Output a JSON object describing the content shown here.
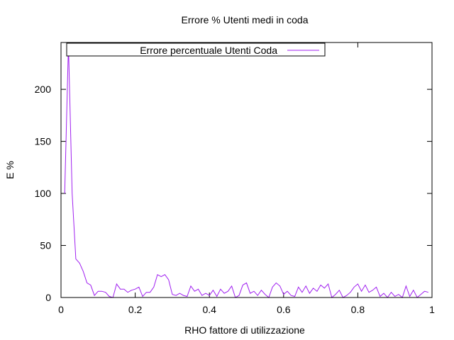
{
  "chart_data": {
    "type": "line",
    "title": "Errore % Utenti medi in coda",
    "xlabel": "RHO fattore di utilizzazione",
    "ylabel": "E %",
    "xlim": [
      0,
      1
    ],
    "ylim": [
      0,
      245
    ],
    "xticks": [
      0,
      0.2,
      0.4,
      0.6,
      0.8,
      1
    ],
    "xtick_labels": [
      "0",
      "0.2",
      "0.4",
      "0.6",
      "0.8",
      "1"
    ],
    "yticks": [
      0,
      50,
      100,
      150,
      200
    ],
    "ytick_labels": [
      "0",
      "50",
      "100",
      "150",
      "200"
    ],
    "grid": false,
    "legend_position": "top-left",
    "series": [
      {
        "name": "Errore percentuale Utenti Coda",
        "color": "#a020f0",
        "x": [
          0.01,
          0.02,
          0.03,
          0.04,
          0.05,
          0.06,
          0.07,
          0.08,
          0.09,
          0.1,
          0.11,
          0.12,
          0.13,
          0.14,
          0.15,
          0.16,
          0.17,
          0.18,
          0.19,
          0.2,
          0.21,
          0.22,
          0.23,
          0.24,
          0.25,
          0.26,
          0.27,
          0.28,
          0.29,
          0.3,
          0.31,
          0.32,
          0.33,
          0.34,
          0.35,
          0.36,
          0.37,
          0.38,
          0.39,
          0.4,
          0.41,
          0.42,
          0.43,
          0.44,
          0.45,
          0.46,
          0.47,
          0.48,
          0.49,
          0.5,
          0.51,
          0.52,
          0.53,
          0.54,
          0.55,
          0.56,
          0.57,
          0.58,
          0.59,
          0.6,
          0.61,
          0.62,
          0.63,
          0.64,
          0.65,
          0.66,
          0.67,
          0.68,
          0.69,
          0.7,
          0.71,
          0.72,
          0.73,
          0.74,
          0.75,
          0.76,
          0.77,
          0.78,
          0.79,
          0.8,
          0.81,
          0.82,
          0.83,
          0.84,
          0.85,
          0.86,
          0.87,
          0.88,
          0.89,
          0.9,
          0.91,
          0.92,
          0.93,
          0.94,
          0.95,
          0.96,
          0.97,
          0.98,
          0.99
        ],
        "y": [
          100,
          243,
          100,
          37,
          33,
          25,
          14,
          12,
          2,
          6,
          6,
          5,
          1,
          0,
          13,
          8,
          8,
          5,
          7,
          8,
          10,
          1,
          5,
          5,
          10,
          22,
          20,
          22,
          17,
          3,
          2,
          4,
          2,
          1,
          11,
          6,
          8,
          2,
          4,
          2,
          7,
          1,
          8,
          4,
          6,
          11,
          0,
          2,
          12,
          14,
          4,
          6,
          2,
          7,
          3,
          0,
          10,
          14,
          11,
          3,
          6,
          2,
          1,
          10,
          5,
          11,
          4,
          9,
          6,
          12,
          9,
          13,
          0,
          3,
          7,
          0,
          2,
          5,
          10,
          13,
          6,
          12,
          5,
          7,
          10,
          1,
          4,
          0,
          5,
          1,
          3,
          0,
          11,
          1,
          7,
          0,
          3,
          6,
          5
        ]
      }
    ]
  }
}
